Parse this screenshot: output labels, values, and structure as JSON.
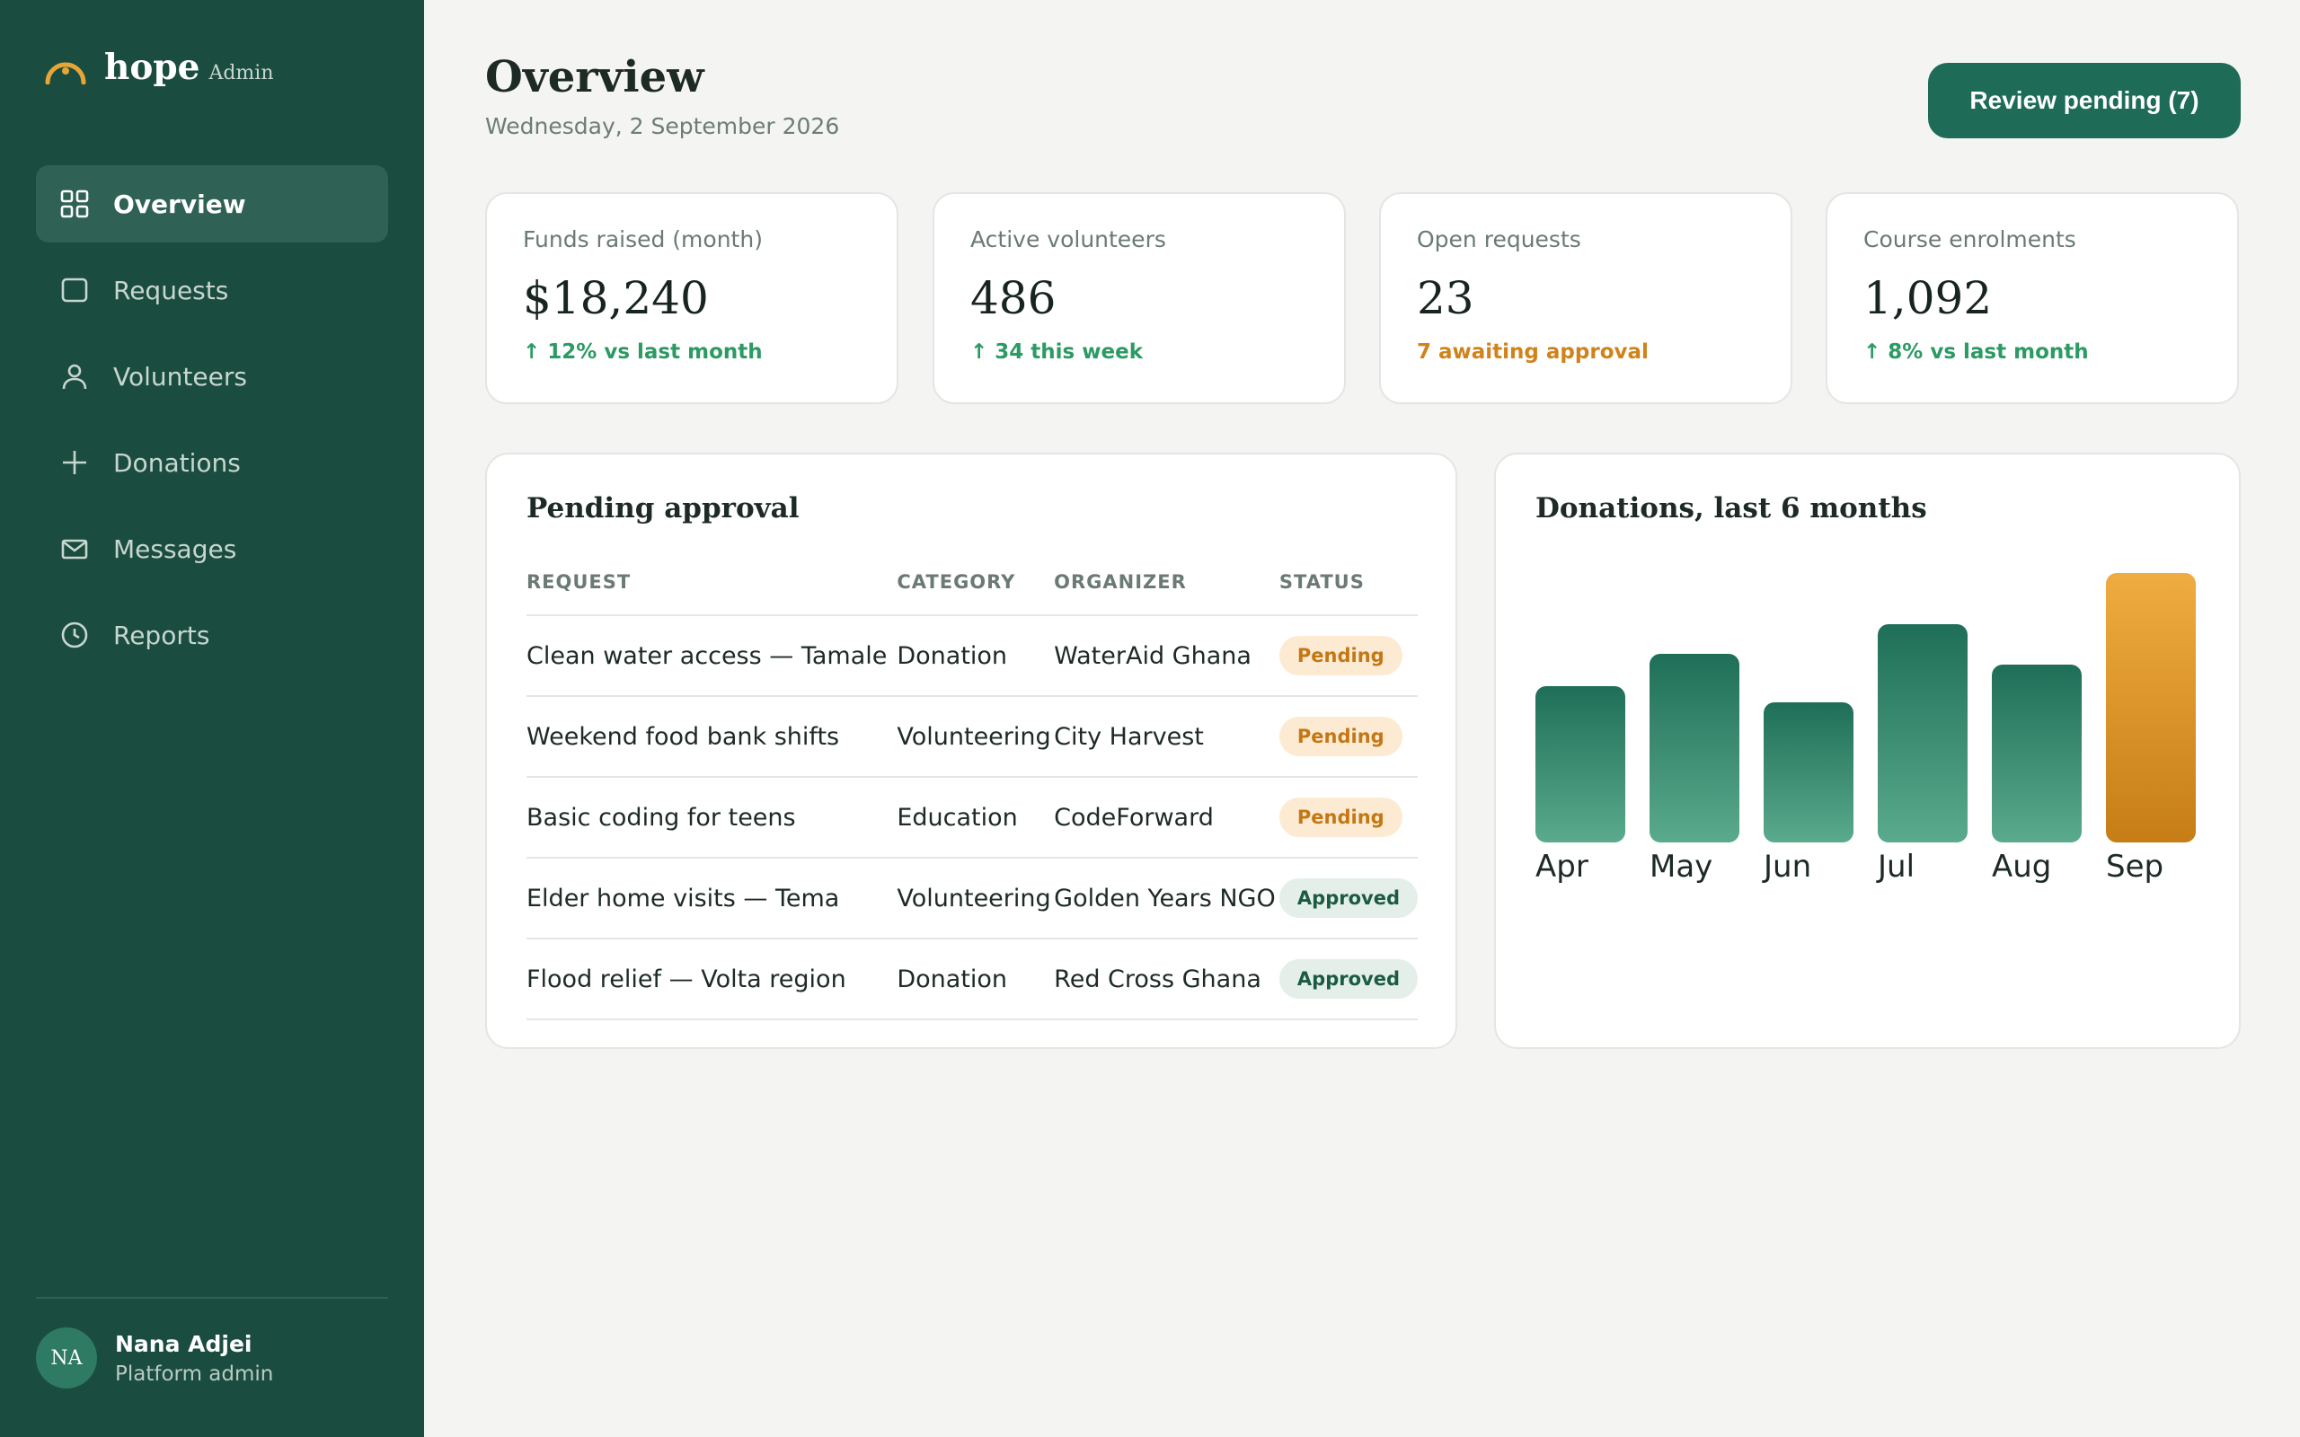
{
  "brand": {
    "name": "hope",
    "suffix": "Admin"
  },
  "nav": [
    {
      "label": "Overview",
      "icon": "grid-icon",
      "active": true
    },
    {
      "label": "Requests",
      "icon": "square-icon",
      "active": false
    },
    {
      "label": "Volunteers",
      "icon": "user-icon",
      "active": false
    },
    {
      "label": "Donations",
      "icon": "plus-icon",
      "active": false
    },
    {
      "label": "Messages",
      "icon": "mail-icon",
      "active": false
    },
    {
      "label": "Reports",
      "icon": "clock-icon",
      "active": false
    }
  ],
  "user": {
    "initials": "NA",
    "name": "Nana Adjei",
    "role": "Platform admin"
  },
  "header": {
    "title": "Overview",
    "date": "Wednesday, 2 September 2026",
    "cta_label": "Review pending (7)"
  },
  "stats": [
    {
      "label": "Funds raised (month)",
      "value": "$18,240",
      "note": "↑ 12% vs last month",
      "tone": "green"
    },
    {
      "label": "Active volunteers",
      "value": "486",
      "note": "↑ 34 this week",
      "tone": "green"
    },
    {
      "label": "Open requests",
      "value": "23",
      "note": "7 awaiting approval",
      "tone": "amber"
    },
    {
      "label": "Course enrolments",
      "value": "1,092",
      "note": "↑ 8% vs last month",
      "tone": "green"
    }
  ],
  "pending": {
    "title": "Pending approval",
    "columns": [
      "REQUEST",
      "CATEGORY",
      "ORGANIZER",
      "STATUS"
    ],
    "rows": [
      {
        "request": "Clean water access — Tamale",
        "category": "Donation",
        "organizer": "WaterAid Ghana",
        "status": "Pending"
      },
      {
        "request": "Weekend food bank shifts",
        "category": "Volunteering",
        "organizer": "City Harvest",
        "status": "Pending"
      },
      {
        "request": "Basic coding for teens",
        "category": "Education",
        "organizer": "CodeForward",
        "status": "Pending"
      },
      {
        "request": "Elder home visits — Tema",
        "category": "Volunteering",
        "organizer": "Golden Years NGO",
        "status": "Approved"
      },
      {
        "request": "Flood relief — Volta region",
        "category": "Donation",
        "organizer": "Red Cross Ghana",
        "status": "Approved"
      }
    ]
  },
  "colors": {
    "bar": "#1f6e57",
    "bar_highlight": "#e8a537",
    "sidebar": "#1a4d3f"
  },
  "chart_data": {
    "type": "bar",
    "title": "Donations, last 6 months",
    "categories": [
      "Apr",
      "May",
      "Jun",
      "Jul",
      "Aug",
      "Sep"
    ],
    "values": [
      58,
      70,
      52,
      81,
      66,
      100
    ],
    "highlight_index": 5,
    "ylim": [
      0,
      100
    ],
    "grid": false,
    "legend": "none",
    "xlabel": "",
    "ylabel": ""
  }
}
